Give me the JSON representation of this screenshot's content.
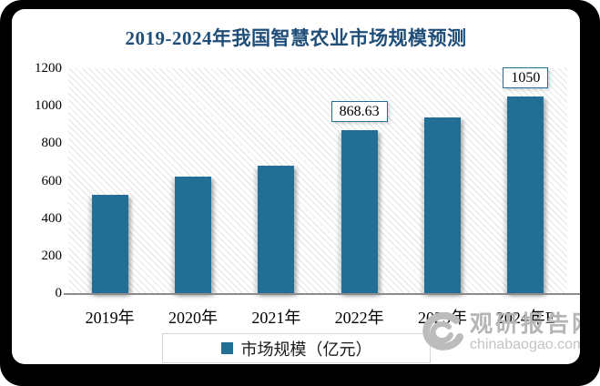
{
  "title": "2019-2024年我国智慧农业市场规模预测",
  "chart_data": {
    "type": "bar",
    "title": "2019-2024年我国智慧农业市场规模预测",
    "categories": [
      "2019年",
      "2020年",
      "2021年",
      "2022年",
      "2023年",
      "2024年E"
    ],
    "values": [
      525,
      620,
      682,
      868.63,
      940,
      1050
    ],
    "data_labels": [
      null,
      null,
      null,
      "868.63",
      null,
      "1050"
    ],
    "xlabel": "",
    "ylabel": "",
    "ylim": [
      0,
      1200
    ],
    "yticks": [
      0,
      200,
      400,
      600,
      800,
      1000,
      1200
    ],
    "grid": false,
    "legend_label": "市场规模（亿元）",
    "legend_position": "bottom",
    "bar_color": "#216f94"
  },
  "watermark": {
    "name": "观研报告网",
    "domain": "chinabaogao.com"
  },
  "colors": {
    "title": "#1f4e79",
    "bar": "#216f94",
    "callout_border": "#216f94",
    "axis_line": "#8c8c8c",
    "hatch_line": "#e3e3e3",
    "watermark_text": "#b5b5b5",
    "frame": "#000000"
  }
}
